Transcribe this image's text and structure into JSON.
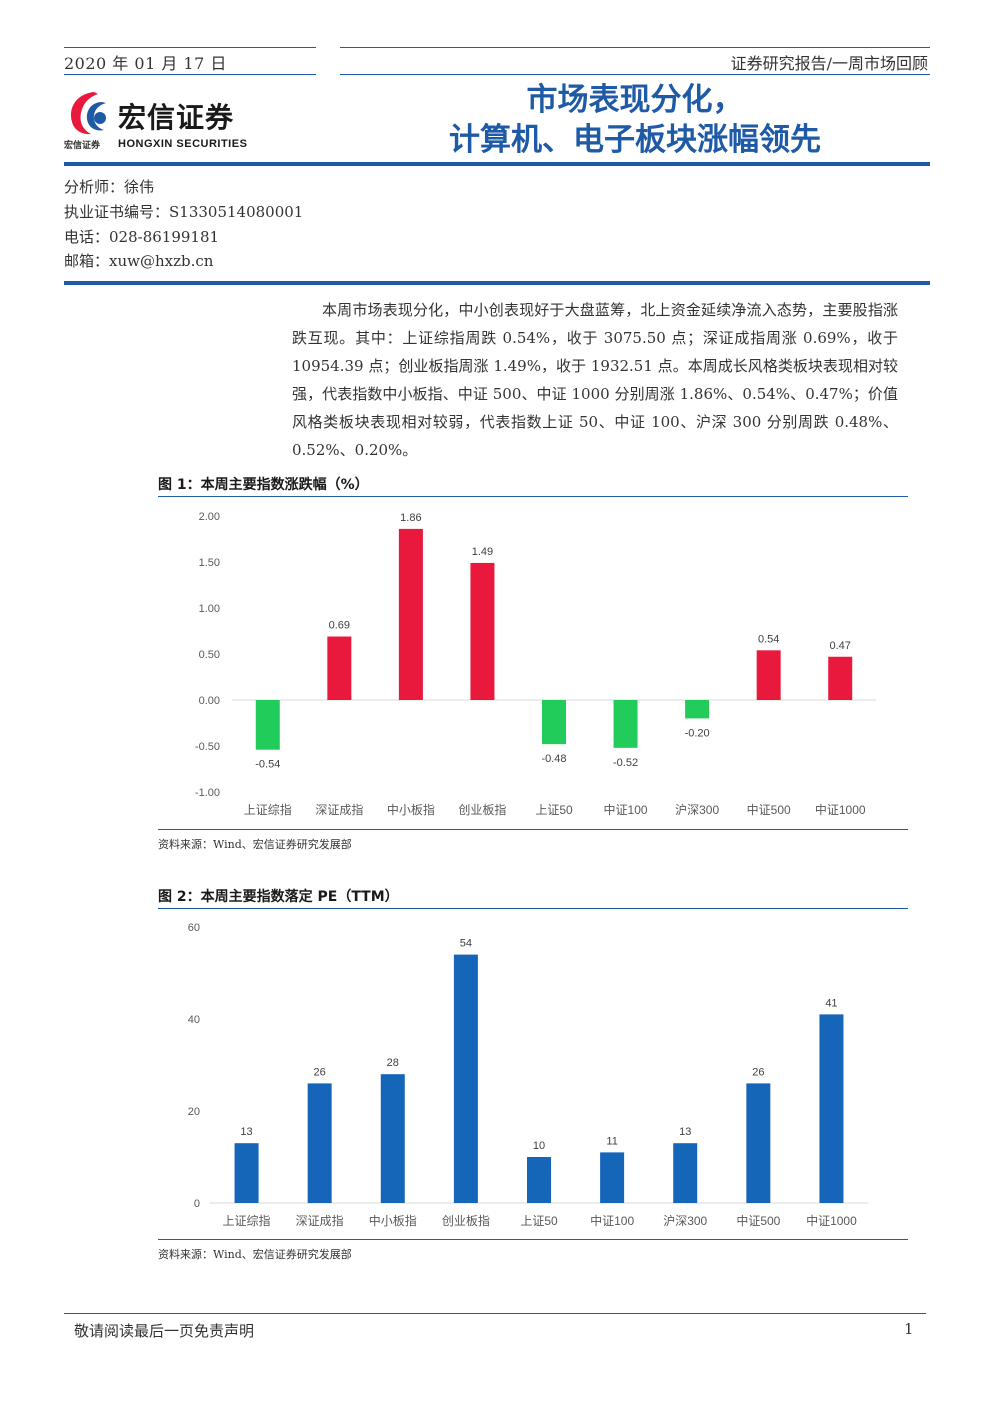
{
  "header": {
    "date": "2020 年 01 月 17 日",
    "category": "证券研究报告/一周市场回顾",
    "title_line1": "市场表现分化，",
    "title_line2": "计算机、电子板块涨幅领先"
  },
  "logo": {
    "name_cn": "宏信证券",
    "name_en": "HONGXIN SECURITIES",
    "small_cn": "宏信证券"
  },
  "analyst": {
    "name": "分析师：徐伟",
    "license": "执业证书编号：S1330514080001",
    "phone": "电话：028-86199181",
    "email": "邮箱：xuw@hxzb.cn"
  },
  "summary": "本周市场表现分化，中小创表现好于大盘蓝筹，北上资金延续净流入态势，主要股指涨跌互现。其中：上证综指周跌 0.54%，收于 3075.50 点；深证成指周涨 0.69%，收于 10954.39 点；创业板指周涨 1.49%，收于 1932.51 点。本周成长风格类板块表现相对较强，代表指数中小板指、中证 500、中证 1000 分别周涨 1.86%、0.54%、0.47%；价值风格类板块表现相对较弱，代表指数上证 50、中证 100、沪深 300 分别周跌 0.48%、0.52%、0.20%。",
  "figures": {
    "fig1_title": "图 1：本周主要指数涨跌幅（%）",
    "fig1_source": "资料来源：Wind、宏信证券研究发展部",
    "fig2_title": "图 2：本周主要指数落定 PE（TTM）",
    "fig2_source": "资料来源：Wind、宏信证券研究发展部"
  },
  "colors": {
    "brand": "#1f5aa6",
    "up": "#e8193c",
    "down": "#22cc5a",
    "pe_bar": "#1565b8"
  },
  "chart_data": [
    {
      "type": "bar",
      "title": "",
      "categories": [
        "上证综指",
        "深证成指",
        "中小板指",
        "创业板指",
        "上证50",
        "中证100",
        "沪深300",
        "中证500",
        "中证1000"
      ],
      "values": [
        -0.54,
        0.69,
        1.86,
        1.49,
        -0.48,
        -0.52,
        -0.2,
        0.54,
        0.47
      ],
      "ylim": [
        -1.0,
        2.0
      ],
      "yticks": [
        "2.00",
        "1.50",
        "1.00",
        "0.50",
        "0.00",
        "-0.50",
        "-1.00"
      ],
      "data_labels": [
        "-0.54",
        "0.69",
        "1.86",
        "1.49",
        "-0.48",
        "-0.52",
        "-0.20",
        "0.54",
        "0.47"
      ],
      "grid": false
    },
    {
      "type": "bar",
      "title": "",
      "categories": [
        "上证综指",
        "深证成指",
        "中小板指",
        "创业板指",
        "上证50",
        "中证100",
        "沪深300",
        "中证500",
        "中证1000"
      ],
      "values": [
        13,
        26,
        28,
        54,
        10,
        11,
        13,
        26,
        41
      ],
      "ylim": [
        0,
        60
      ],
      "yticks": [
        "60",
        "40",
        "20",
        "0"
      ],
      "data_labels": [
        "13",
        "26",
        "28",
        "54",
        "10",
        "11",
        "13",
        "26",
        "41"
      ],
      "grid": false
    }
  ],
  "footer": {
    "disclaimer": "敬请阅读最后一页免责声明",
    "page": "1"
  }
}
